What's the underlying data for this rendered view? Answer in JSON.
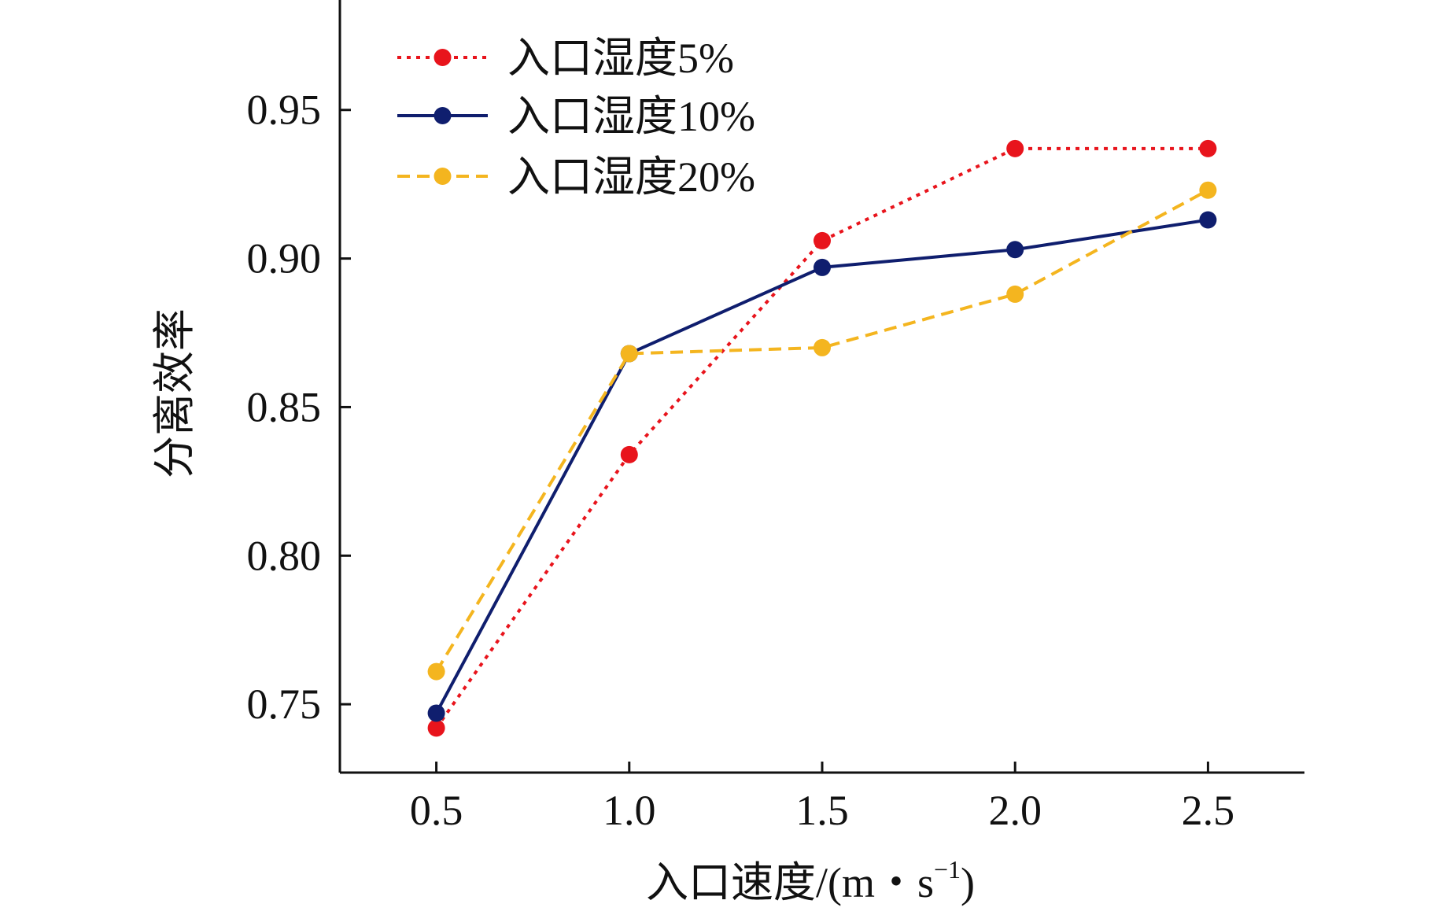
{
  "chart_data": {
    "type": "line",
    "xlabel": "入口速度/(m・s",
    "xlabel_sup": "−1",
    "xlabel_close": ")",
    "ylabel": "分离效率",
    "x": [
      0.5,
      1.0,
      1.5,
      2.0,
      2.5
    ],
    "x_tick_labels": [
      "0.5",
      "1.0",
      "1.5",
      "2.0",
      "2.5"
    ],
    "y_ticks": [
      0.75,
      0.8,
      0.85,
      0.9,
      0.95
    ],
    "y_tick_labels": [
      "0.75",
      "0.80",
      "0.85",
      "0.90",
      "0.95"
    ],
    "xlim": [
      0.25,
      2.75
    ],
    "ylim": [
      0.727,
      0.987
    ],
    "grid": false,
    "legend_position": "top-left",
    "series": [
      {
        "name": "入口湿度5%",
        "values": [
          0.742,
          0.834,
          0.906,
          0.937,
          0.937
        ],
        "color": "#e8141c",
        "line_style": "dotted"
      },
      {
        "name": "入口湿度10%",
        "values": [
          0.747,
          0.868,
          0.897,
          0.903,
          0.913
        ],
        "color": "#0f1e6e",
        "line_style": "solid"
      },
      {
        "name": "入口湿度20%",
        "values": [
          0.761,
          0.868,
          0.87,
          0.888,
          0.923
        ],
        "color": "#f4b51f",
        "line_style": "dashed"
      }
    ]
  }
}
